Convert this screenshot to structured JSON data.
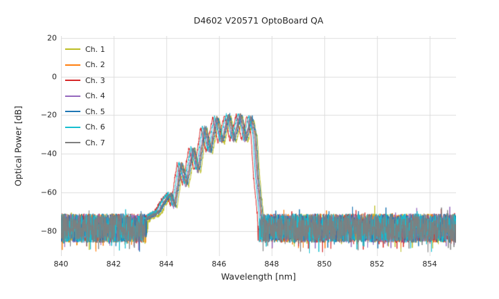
{
  "figure": {
    "background": "#ffffff"
  },
  "chart_data": {
    "type": "line",
    "title": "D4602 V20571 OptoBoard QA",
    "xlabel": "Wavelength [nm]",
    "ylabel": "Optical Power [dB]",
    "xlim": [
      840,
      855
    ],
    "ylim": [
      -93,
      21
    ],
    "xticks": [
      840,
      842,
      844,
      846,
      848,
      850,
      852,
      854
    ],
    "yticks": [
      20,
      0,
      -20,
      -40,
      -60,
      -80
    ],
    "grid": true,
    "grid_color": "#dcdcdc",
    "legend_position": "upper-left",
    "noise_floor": {
      "mean_db": -78.5,
      "half_spread_db": 7.5,
      "spike_chance": 0.05,
      "spike_depth_db": 6,
      "up_spike_chance": 0.02,
      "up_spike_db": 5,
      "min_db": -92.5
    },
    "signal_envelope_nm_db": [
      [
        843.2,
        -74
      ],
      [
        843.7,
        -70
      ],
      [
        843.95,
        -64
      ],
      [
        844.15,
        -61
      ],
      [
        844.3,
        -67
      ],
      [
        844.55,
        -45
      ],
      [
        844.75,
        -56
      ],
      [
        845.0,
        -37
      ],
      [
        845.2,
        -49
      ],
      [
        845.45,
        -26
      ],
      [
        845.65,
        -39
      ],
      [
        845.9,
        -21
      ],
      [
        846.1,
        -34
      ],
      [
        846.35,
        -19.8
      ],
      [
        846.55,
        -33
      ],
      [
        846.8,
        -19.5
      ],
      [
        847.0,
        -33
      ],
      [
        847.2,
        -20.5
      ],
      [
        847.35,
        -30
      ],
      [
        847.45,
        -52
      ],
      [
        847.6,
        -72
      ]
    ],
    "series": [
      {
        "name": "Ch. 1",
        "color": "#bcbd22",
        "x_offset_nm": 0.1,
        "y_offset_db": -1.0
      },
      {
        "name": "Ch. 2",
        "color": "#ff7f0e",
        "x_offset_nm": 0.03,
        "y_offset_db": 0.0
      },
      {
        "name": "Ch. 3",
        "color": "#d62728",
        "x_offset_nm": -0.14,
        "y_offset_db": 0.0
      },
      {
        "name": "Ch. 4",
        "color": "#9467bd",
        "x_offset_nm": -0.02,
        "y_offset_db": -0.5
      },
      {
        "name": "Ch. 5",
        "color": "#1f77b4",
        "x_offset_nm": 0.06,
        "y_offset_db": 0.0
      },
      {
        "name": "Ch. 6",
        "color": "#17becf",
        "x_offset_nm": -0.07,
        "y_offset_db": 0.5
      },
      {
        "name": "Ch. 7",
        "color": "#7f7f7f",
        "x_offset_nm": 0.01,
        "y_offset_db": 0.0
      }
    ]
  }
}
